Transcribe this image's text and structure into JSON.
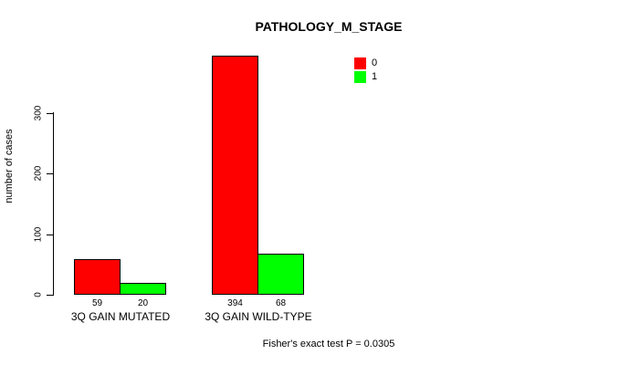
{
  "chart_data": {
    "type": "bar",
    "title": "PATHOLOGY_M_STAGE",
    "xlabel": "",
    "ylabel": "number of cases",
    "categories": [
      "3Q GAIN MUTATED",
      "3Q GAIN WILD-TYPE"
    ],
    "series": [
      {
        "name": "0",
        "color": "#FF0000",
        "values": [
          59,
          394
        ]
      },
      {
        "name": "1",
        "color": "#00FF00",
        "values": [
          20,
          68
        ]
      }
    ],
    "bar_value_labels": [
      [
        "59",
        "394"
      ],
      [
        "20",
        "68"
      ]
    ],
    "yticks": [
      0,
      100,
      200,
      300
    ],
    "ylim": [
      0,
      300
    ],
    "grid": false,
    "legend_position": "top-right",
    "annotation": "Fisher's exact test P = 0.0305"
  }
}
